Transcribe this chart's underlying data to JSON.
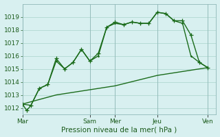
{
  "xlabel": "Pression niveau de la mer( hPa )",
  "background_color": "#d8f0f0",
  "grid_color": "#b0d8d0",
  "line_color": "#1a6b1a",
  "ylim": [
    1011.5,
    1020.0
  ],
  "yticks": [
    1012,
    1013,
    1014,
    1015,
    1016,
    1017,
    1018,
    1019
  ],
  "xtick_labels": [
    "Mar",
    "Sam",
    "Mer",
    "Jeu",
    "Ven"
  ],
  "xtick_positions": [
    0,
    8,
    11,
    16,
    22
  ],
  "xlim": [
    0,
    23
  ],
  "series1_x": [
    0,
    0.5,
    1,
    2,
    3,
    4,
    5,
    6,
    7,
    8,
    9,
    10,
    11,
    12,
    13,
    14,
    15,
    16,
    17,
    18,
    19,
    20,
    21,
    22
  ],
  "series1_y": [
    1012.3,
    1011.8,
    1012.2,
    1013.5,
    1013.8,
    1015.8,
    1015.0,
    1015.5,
    1016.5,
    1015.6,
    1016.2,
    1018.2,
    1018.6,
    1018.4,
    1018.6,
    1018.5,
    1018.5,
    1019.35,
    1019.25,
    1018.7,
    1018.7,
    1017.6,
    1015.5,
    1015.1
  ],
  "series2_x": [
    0,
    1,
    2,
    3,
    4,
    5,
    6,
    7,
    8,
    9,
    10,
    11,
    12,
    13,
    14,
    15,
    16,
    17,
    18,
    19,
    20,
    21,
    22
  ],
  "series2_y": [
    1012.3,
    1012.2,
    1013.5,
    1013.8,
    1015.6,
    1015.0,
    1015.5,
    1016.5,
    1015.6,
    1016.0,
    1018.2,
    1018.5,
    1018.4,
    1018.6,
    1018.5,
    1018.5,
    1019.35,
    1019.25,
    1018.7,
    1018.5,
    1016.0,
    1015.5,
    1015.1
  ],
  "series3_x": [
    0,
    4,
    8,
    11,
    16,
    22
  ],
  "series3_y": [
    1012.3,
    1013.0,
    1013.4,
    1013.7,
    1014.5,
    1015.1
  ],
  "marker_size": 3,
  "line_width": 1.0,
  "tick_fontsize": 6.5,
  "xlabel_fontsize": 7.5
}
